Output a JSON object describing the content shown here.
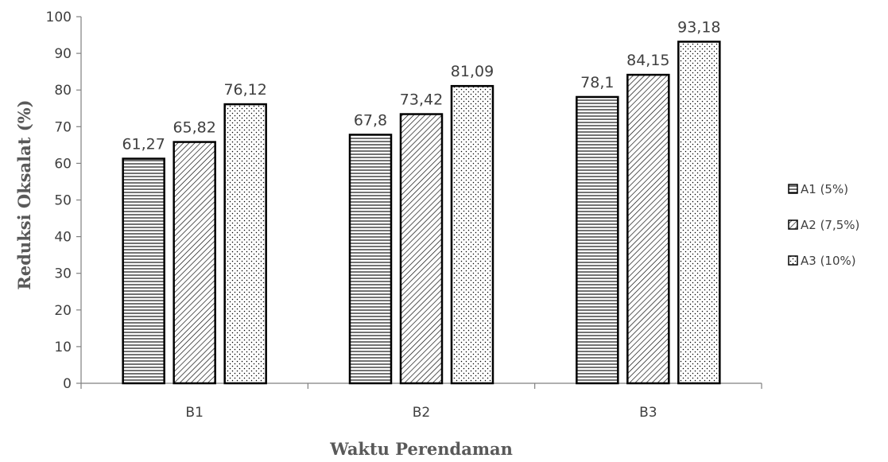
{
  "chart_data": {
    "type": "bar",
    "categories": [
      "B1",
      "B2",
      "B3"
    ],
    "series": [
      {
        "name": "A1 (5%)",
        "values": [
          61.27,
          67.8,
          78.1
        ],
        "value_labels": [
          "61,27",
          "67,8",
          "78,1"
        ],
        "pattern": "horizontal-lines"
      },
      {
        "name": "A2 (7,5%)",
        "values": [
          65.82,
          73.42,
          84.15
        ],
        "value_labels": [
          "65,82",
          "73,42",
          "84,15"
        ],
        "pattern": "diagonal-lines"
      },
      {
        "name": "A3 (10%)",
        "values": [
          76.12,
          81.09,
          93.18
        ],
        "value_labels": [
          "76,12",
          "81,09",
          "93,18"
        ],
        "pattern": "dots"
      }
    ],
    "title": "",
    "xlabel": "Waktu Perendaman",
    "ylabel": "Reduksi Oksalat (%)",
    "ylim": [
      0,
      100
    ],
    "yticks": [
      0,
      10,
      20,
      30,
      40,
      50,
      60,
      70,
      80,
      90,
      100
    ],
    "grid": false,
    "legend_position": "right"
  }
}
